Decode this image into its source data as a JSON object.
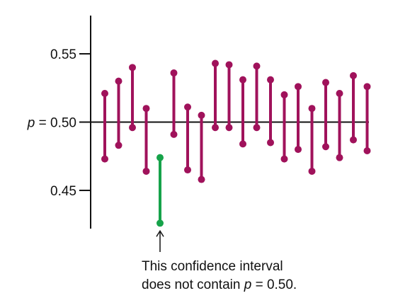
{
  "chart_data": {
    "type": "interval",
    "title": "",
    "xlabel": "",
    "ylabel": "",
    "ylim": [
      0.422,
      0.578
    ],
    "yticks": [
      {
        "value": 0.55,
        "label": "0.55"
      },
      {
        "value": 0.45,
        "label": "0.45"
      }
    ],
    "reference_line": {
      "value": 0.5,
      "label_var": "p",
      "label_rest": " = 0.50"
    },
    "colors": {
      "normal": "#A0125B",
      "highlight": "#16A34A",
      "axis": "#111111"
    },
    "intervals": [
      {
        "lower": 0.473,
        "upper": 0.521,
        "contains": true
      },
      {
        "lower": 0.483,
        "upper": 0.53,
        "contains": true
      },
      {
        "lower": 0.496,
        "upper": 0.54,
        "contains": true
      },
      {
        "lower": 0.464,
        "upper": 0.51,
        "contains": true
      },
      {
        "lower": 0.426,
        "upper": 0.474,
        "contains": false
      },
      {
        "lower": 0.491,
        "upper": 0.536,
        "contains": true
      },
      {
        "lower": 0.465,
        "upper": 0.511,
        "contains": true
      },
      {
        "lower": 0.458,
        "upper": 0.505,
        "contains": true
      },
      {
        "lower": 0.496,
        "upper": 0.543,
        "contains": true
      },
      {
        "lower": 0.496,
        "upper": 0.542,
        "contains": true
      },
      {
        "lower": 0.484,
        "upper": 0.531,
        "contains": true
      },
      {
        "lower": 0.496,
        "upper": 0.541,
        "contains": true
      },
      {
        "lower": 0.485,
        "upper": 0.531,
        "contains": true
      },
      {
        "lower": 0.473,
        "upper": 0.52,
        "contains": true
      },
      {
        "lower": 0.48,
        "upper": 0.526,
        "contains": true
      },
      {
        "lower": 0.464,
        "upper": 0.51,
        "contains": true
      },
      {
        "lower": 0.482,
        "upper": 0.529,
        "contains": true
      },
      {
        "lower": 0.474,
        "upper": 0.521,
        "contains": true
      },
      {
        "lower": 0.487,
        "upper": 0.534,
        "contains": true
      },
      {
        "lower": 0.479,
        "upper": 0.526,
        "contains": true
      }
    ],
    "annotation": {
      "line1": "This confidence interval",
      "line2_pre": "does not contain ",
      "line2_var": "p",
      "line2_post": " = 0.50.",
      "target_index": 4
    }
  }
}
